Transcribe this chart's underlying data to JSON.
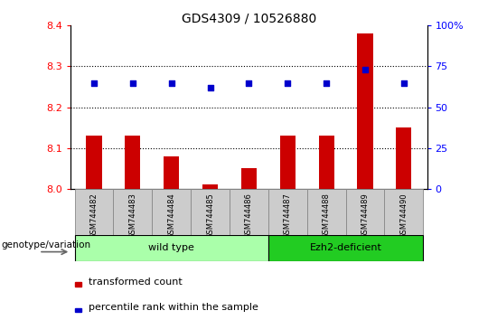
{
  "title": "GDS4309 / 10526880",
  "samples": [
    "GSM744482",
    "GSM744483",
    "GSM744484",
    "GSM744485",
    "GSM744486",
    "GSM744487",
    "GSM744488",
    "GSM744489",
    "GSM744490"
  ],
  "transformed_counts": [
    8.13,
    8.13,
    8.08,
    8.01,
    8.05,
    8.13,
    8.13,
    8.38,
    8.15
  ],
  "percentile_ranks": [
    65,
    65,
    65,
    62,
    65,
    65,
    65,
    73,
    65
  ],
  "ylim_left": [
    8.0,
    8.4
  ],
  "ylim_right": [
    0,
    100
  ],
  "yticks_left": [
    8.0,
    8.1,
    8.2,
    8.3,
    8.4
  ],
  "yticks_right": [
    0,
    25,
    50,
    75,
    100
  ],
  "ytick_labels_right": [
    "0",
    "25",
    "50",
    "75",
    "100%"
  ],
  "bar_color": "#cc0000",
  "dot_color": "#0000cc",
  "background_color": "#ffffff",
  "groups": [
    {
      "label": "wild type",
      "start": 0,
      "end": 4,
      "color": "#aaffaa"
    },
    {
      "label": "Ezh2-deficient",
      "start": 5,
      "end": 8,
      "color": "#22cc22"
    }
  ],
  "group_label_prefix": "genotype/variation",
  "legend_bar_label": "transformed count",
  "legend_dot_label": "percentile rank within the sample",
  "bar_width": 0.4,
  "tick_band_color": "#cccccc",
  "grid_ticks": [
    8.1,
    8.2,
    8.3
  ]
}
